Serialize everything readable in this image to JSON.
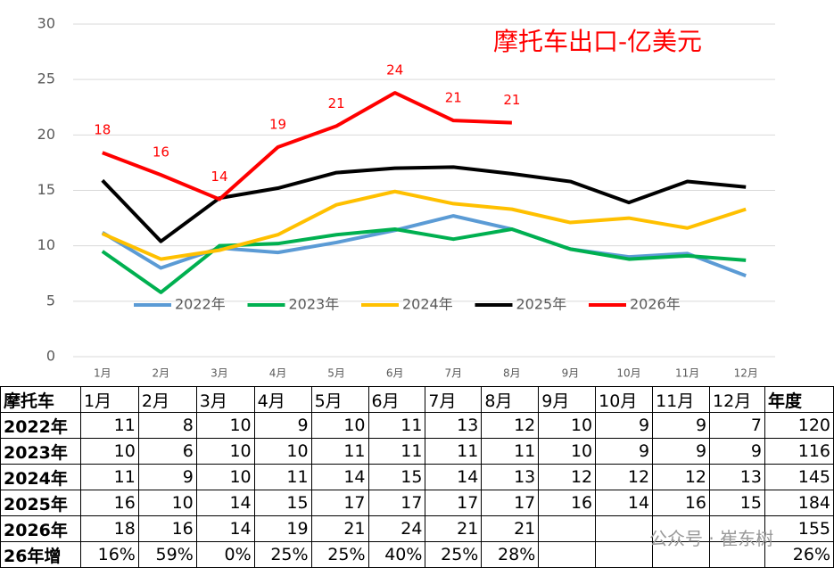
{
  "chart_data": {
    "type": "line",
    "title": "摩托车出口-亿美元",
    "categories": [
      "1月",
      "2月",
      "3月",
      "4月",
      "5月",
      "6月",
      "7月",
      "8月",
      "9月",
      "10月",
      "11月",
      "12月"
    ],
    "series": [
      {
        "name": "2022年",
        "color": "#5b9bd5",
        "values": [
          11.2,
          8.0,
          9.8,
          9.4,
          10.3,
          11.4,
          12.7,
          11.5,
          9.7,
          9.0,
          9.3,
          7.3
        ]
      },
      {
        "name": "2023年",
        "color": "#00b050",
        "values": [
          9.5,
          5.8,
          10.0,
          10.2,
          11.0,
          11.5,
          10.6,
          11.5,
          9.7,
          8.8,
          9.1,
          8.7
        ]
      },
      {
        "name": "2024年",
        "color": "#ffc000",
        "values": [
          11.1,
          8.8,
          9.6,
          11.0,
          13.7,
          14.9,
          13.8,
          13.3,
          12.1,
          12.5,
          11.6,
          13.3
        ]
      },
      {
        "name": "2025年",
        "color": "#000000",
        "values": [
          15.9,
          10.4,
          14.3,
          15.2,
          16.6,
          17.0,
          17.1,
          16.5,
          15.8,
          13.9,
          15.8,
          15.3
        ]
      },
      {
        "name": "2026年",
        "color": "#ff0000",
        "values": [
          18.4,
          16.4,
          14.2,
          18.9,
          20.8,
          23.8,
          21.3,
          21.1,
          null,
          null,
          null,
          null
        ],
        "value_labels": [
          "18",
          "16",
          "14",
          "19",
          "21",
          "24",
          "21",
          "21",
          null,
          null,
          null,
          null
        ]
      }
    ],
    "ylim": [
      0,
      30
    ],
    "yticks": [
      0,
      5,
      10,
      15,
      20,
      25,
      30
    ],
    "grid": true,
    "legend": "bottom"
  },
  "table": {
    "header": [
      "摩托车",
      "1月",
      "2月",
      "3月",
      "4月",
      "5月",
      "6月",
      "7月",
      "8月",
      "9月",
      "10月",
      "11月",
      "12月",
      "年度"
    ],
    "rows": [
      [
        "2022年",
        11,
        8,
        10,
        9,
        10,
        11,
        13,
        12,
        10,
        9,
        9,
        7,
        120
      ],
      [
        "2023年",
        10,
        6,
        10,
        10,
        11,
        11,
        11,
        11,
        10,
        9,
        9,
        9,
        116
      ],
      [
        "2024年",
        11,
        9,
        10,
        11,
        14,
        15,
        14,
        13,
        12,
        12,
        12,
        13,
        145
      ],
      [
        "2025年",
        16,
        10,
        14,
        15,
        17,
        17,
        17,
        17,
        16,
        14,
        16,
        15,
        184
      ],
      [
        "2026年",
        18,
        16,
        14,
        19,
        21,
        24,
        21,
        21,
        null,
        null,
        null,
        null,
        155
      ],
      [
        "26年增",
        "16%",
        "59%",
        "0%",
        "25%",
        "25%",
        "40%",
        "25%",
        "28%",
        null,
        null,
        null,
        null,
        "26%"
      ]
    ]
  },
  "watermark": "公众号 · 崔东树"
}
